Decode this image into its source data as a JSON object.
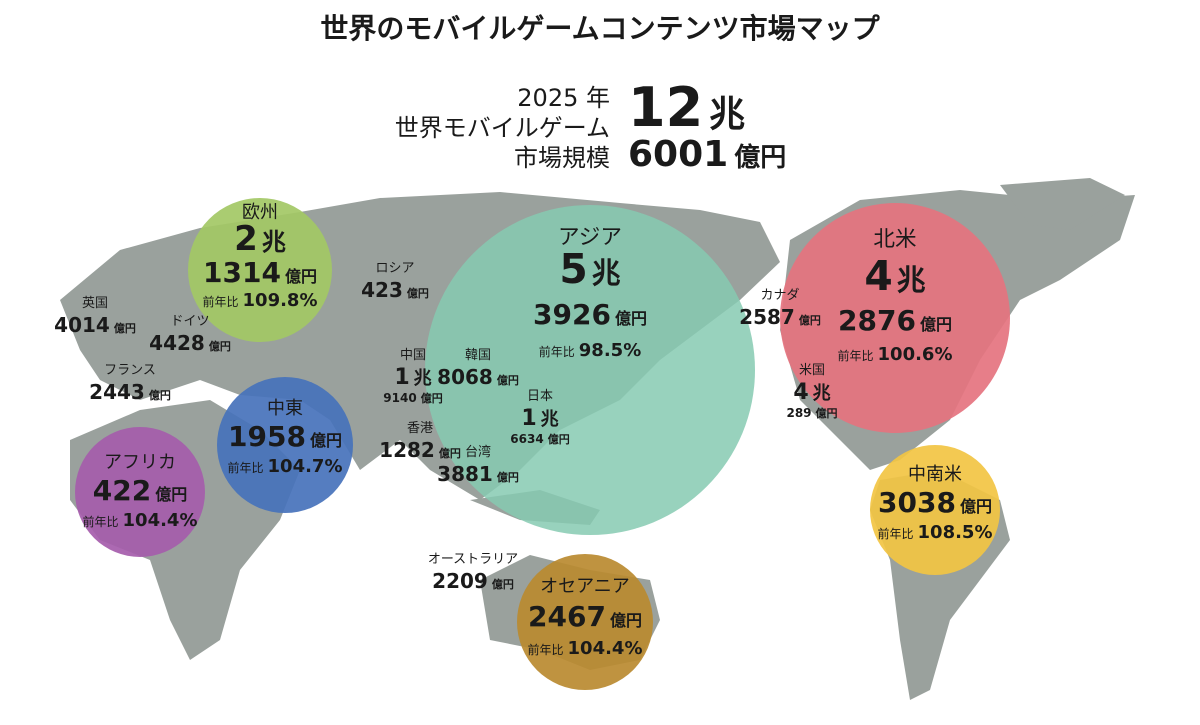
{
  "title": "世界のモバイルゲームコンテンツ市場マップ",
  "total": {
    "year": "2025 年",
    "label1": "世界モバイルゲーム",
    "label2": "市場規模",
    "cho": "12",
    "cho_unit": "兆",
    "oku": "6001",
    "oku_unit": "億円"
  },
  "regions": [
    {
      "name": "欧州",
      "cho": "2",
      "cho_unit": "兆",
      "oku": "1314",
      "oku_unit": "億円",
      "yoy_label": "前年比",
      "yoy": "109.8%"
    },
    {
      "name": "アジア",
      "cho": "5",
      "cho_unit": "兆",
      "oku": "3926",
      "oku_unit": "億円",
      "yoy_label": "前年比",
      "yoy": "98.5%"
    },
    {
      "name": "北米",
      "cho": "4",
      "cho_unit": "兆",
      "oku": "2876",
      "oku_unit": "億円",
      "yoy_label": "前年比",
      "yoy": "100.6%"
    },
    {
      "name": "中東",
      "oku": "1958",
      "oku_unit": "億円",
      "yoy_label": "前年比",
      "yoy": "104.7%"
    },
    {
      "name": "アフリカ",
      "oku": "422",
      "oku_unit": "億円",
      "yoy_label": "前年比",
      "yoy": "104.4%"
    },
    {
      "name": "中南米",
      "oku": "3038",
      "oku_unit": "億円",
      "yoy_label": "前年比",
      "yoy": "108.5%"
    },
    {
      "name": "オセアニア",
      "oku": "2467",
      "oku_unit": "億円",
      "yoy_label": "前年比",
      "yoy": "104.4%"
    }
  ],
  "countries": [
    {
      "name": "英国",
      "oku": "4014",
      "oku_unit": "億円"
    },
    {
      "name": "ドイツ",
      "oku": "4428",
      "oku_unit": "億円"
    },
    {
      "name": "フランス",
      "oku": "2443",
      "oku_unit": "億円"
    },
    {
      "name": "ロシア",
      "oku": "423",
      "oku_unit": "億円"
    },
    {
      "name": "カナダ",
      "oku": "2587",
      "oku_unit": "億円"
    },
    {
      "name": "中国",
      "cho": "1",
      "cho_unit": "兆",
      "oku": "9140",
      "oku_unit": "億円"
    },
    {
      "name": "韓国",
      "oku": "8068",
      "oku_unit": "億円"
    },
    {
      "name": "日本",
      "cho": "1",
      "cho_unit": "兆",
      "oku": "6634",
      "oku_unit": "億円"
    },
    {
      "name": "香港",
      "oku": "1282",
      "oku_unit": "億円"
    },
    {
      "name": "台湾",
      "oku": "3881",
      "oku_unit": "億円"
    },
    {
      "name": "米国",
      "cho": "4",
      "cho_unit": "兆",
      "oku": "289",
      "oku_unit": "億円"
    },
    {
      "name": "オーストラリア",
      "oku": "2209",
      "oku_unit": "億円"
    }
  ]
}
